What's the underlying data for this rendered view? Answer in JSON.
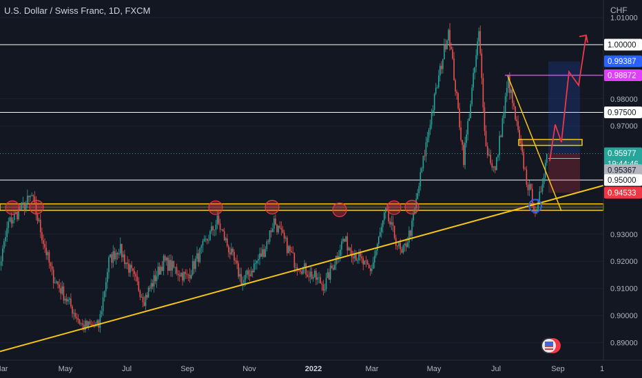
{
  "header": {
    "symbol_title": "U.S. Dollar / Swiss Franc, 1D, FXCM",
    "currency": "CHF"
  },
  "chart_data": {
    "type": "candlestick",
    "symbol": "USDCHF",
    "timeframe": "1D",
    "source": "FXCM",
    "y_axis": {
      "ylim": [
        0.8835,
        1.0165
      ],
      "ticks": [
        "1.01000",
        "1.00000",
        "0.98000",
        "0.97000",
        "0.93000",
        "0.92000",
        "0.91000",
        "0.90000",
        "0.89000"
      ]
    },
    "x_axis": {
      "ticks": [
        "Mar",
        "May",
        "Jul",
        "Sep",
        "Nov",
        "2022",
        "Mar",
        "May",
        "Jul",
        "Sep",
        "1"
      ]
    },
    "price_labels": [
      {
        "text": "1.00000",
        "value": 1.0,
        "bg": "#ffffff",
        "fg": "#131722"
      },
      {
        "text": "0.99387",
        "value": 0.99387,
        "bg": "#2962ff",
        "fg": "#ffffff"
      },
      {
        "text": "0.98872",
        "value": 0.98872,
        "bg": "#e040fb",
        "fg": "#ffffff"
      },
      {
        "text": "0.97500",
        "value": 0.975,
        "bg": "#ffffff",
        "fg": "#131722"
      },
      {
        "text": "0.95977",
        "value": 0.95977,
        "bg": "#26a69a",
        "fg": "#ffffff",
        "sub": "19:44:46"
      },
      {
        "text": "0.95367",
        "value": 0.95367,
        "bg": "#b2b5be",
        "fg": "#131722"
      },
      {
        "text": "0.95000",
        "value": 0.95,
        "bg": "#ffffff",
        "fg": "#131722"
      },
      {
        "text": "0.94533",
        "value": 0.94533,
        "bg": "#f23645",
        "fg": "#ffffff"
      }
    ],
    "horizontal_levels": [
      1.0,
      0.975,
      0.95
    ],
    "colors": {
      "background": "#131722",
      "up": "#26a69a",
      "down": "#ef5350",
      "trendline": "#f5c518",
      "support_zone": "#f5c518",
      "magenta_level": "#e040fb",
      "projection": "#f23645",
      "current_price_line": "#26a69a"
    },
    "price_path_keypoints": [
      {
        "date": "2021-02-20",
        "price": 0.905
      },
      {
        "date": "2021-03-08",
        "price": 0.934
      },
      {
        "date": "2021-03-31",
        "price": 0.944
      },
      {
        "date": "2021-04-20",
        "price": 0.915
      },
      {
        "date": "2021-05-20",
        "price": 0.896
      },
      {
        "date": "2021-06-05",
        "price": 0.896
      },
      {
        "date": "2021-06-15",
        "price": 0.92
      },
      {
        "date": "2021-06-25",
        "price": 0.925
      },
      {
        "date": "2021-07-20",
        "price": 0.906
      },
      {
        "date": "2021-08-08",
        "price": 0.92
      },
      {
        "date": "2021-08-31",
        "price": 0.914
      },
      {
        "date": "2021-09-30",
        "price": 0.935
      },
      {
        "date": "2021-10-25",
        "price": 0.912
      },
      {
        "date": "2021-11-15",
        "price": 0.924
      },
      {
        "date": "2021-11-25",
        "price": 0.935
      },
      {
        "date": "2021-12-15",
        "price": 0.92
      },
      {
        "date": "2022-01-14",
        "price": 0.911
      },
      {
        "date": "2022-02-01",
        "price": 0.928
      },
      {
        "date": "2022-02-28",
        "price": 0.916
      },
      {
        "date": "2022-03-15",
        "price": 0.938
      },
      {
        "date": "2022-03-31",
        "price": 0.922
      },
      {
        "date": "2022-04-10",
        "price": 0.933
      },
      {
        "date": "2022-04-28",
        "price": 0.972
      },
      {
        "date": "2022-05-16",
        "price": 1.006
      },
      {
        "date": "2022-05-31",
        "price": 0.958
      },
      {
        "date": "2022-06-15",
        "price": 1.004
      },
      {
        "date": "2022-06-22",
        "price": 0.962
      },
      {
        "date": "2022-07-01",
        "price": 0.953
      },
      {
        "date": "2022-07-14",
        "price": 0.987
      },
      {
        "date": "2022-08-01",
        "price": 0.95
      },
      {
        "date": "2022-08-11",
        "price": 0.937
      },
      {
        "date": "2022-08-21",
        "price": 0.95977
      }
    ]
  }
}
